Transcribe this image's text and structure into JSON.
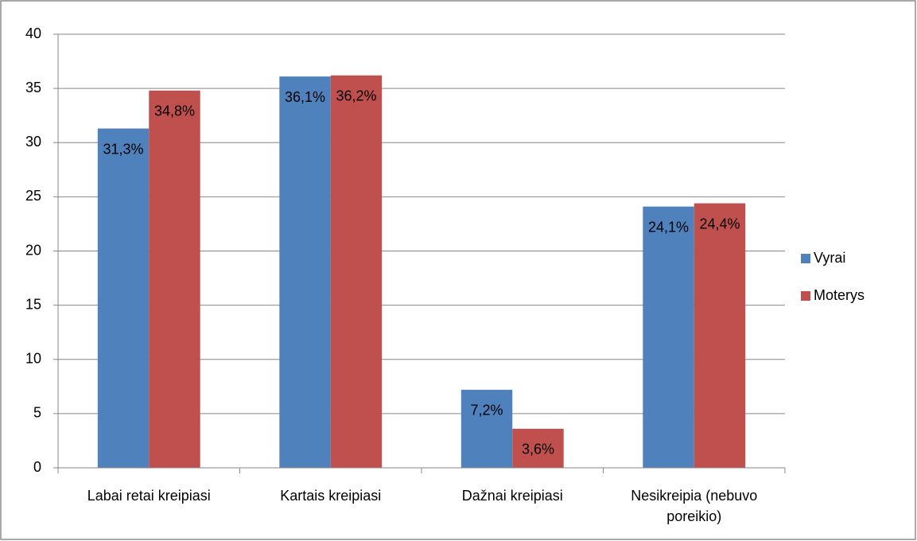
{
  "chart_data": {
    "type": "bar",
    "categories": [
      "Labai retai kreipiasi",
      "Kartais kreipiasi",
      "Dažnai kreipiasi",
      "Nesikreipia (nebuvo poreikio)"
    ],
    "series": [
      {
        "name": "Vyrai",
        "color": "#4f81bd",
        "values": [
          31.3,
          36.1,
          7.2,
          24.1
        ],
        "value_labels": [
          "31,3%",
          "36,1%",
          "7,2%",
          "24,1%"
        ]
      },
      {
        "name": "Moterys",
        "color": "#c0504d",
        "values": [
          34.8,
          36.2,
          3.6,
          24.4
        ],
        "value_labels": [
          "34,8%",
          "36,2%",
          "3,6%",
          "24,4%"
        ]
      }
    ],
    "ylim": [
      0,
      40
    ],
    "yticks": [
      0,
      5,
      10,
      15,
      20,
      25,
      30,
      35,
      40
    ],
    "grid": true,
    "legend": "right"
  }
}
